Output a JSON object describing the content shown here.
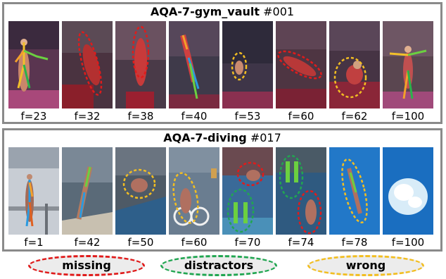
{
  "colors": {
    "missing": "#e01b1b",
    "distractors": "#21a651",
    "wrong": "#f2be22",
    "panel_border": "#8a8a8a"
  },
  "panels": [
    {
      "name": "AQA-7-gym_vault",
      "id": "#001",
      "frames": [
        {
          "label": "f=23",
          "marks": []
        },
        {
          "label": "f=32",
          "marks": [
            "missing"
          ]
        },
        {
          "label": "f=38",
          "marks": [
            "missing"
          ]
        },
        {
          "label": "f=40",
          "marks": []
        },
        {
          "label": "f=53",
          "marks": [
            "wrong"
          ]
        },
        {
          "label": "f=60",
          "marks": [
            "missing"
          ]
        },
        {
          "label": "f=62",
          "marks": [
            "wrong"
          ]
        },
        {
          "label": "f=100",
          "marks": []
        }
      ]
    },
    {
      "name": "AQA-7-diving",
      "id": "#017",
      "frames": [
        {
          "label": "f=1",
          "marks": []
        },
        {
          "label": "f=42",
          "marks": []
        },
        {
          "label": "f=50",
          "marks": [
            "wrong"
          ]
        },
        {
          "label": "f=60",
          "marks": [
            "wrong"
          ]
        },
        {
          "label": "f=70",
          "marks": [
            "missing",
            "distractors"
          ]
        },
        {
          "label": "f=74",
          "marks": [
            "distractors",
            "missing"
          ]
        },
        {
          "label": "f=78",
          "marks": [
            "wrong"
          ]
        },
        {
          "label": "f=100",
          "marks": []
        }
      ]
    }
  ],
  "legend": {
    "missing": "missing",
    "distractors": "distractors",
    "wrong": "wrong"
  }
}
